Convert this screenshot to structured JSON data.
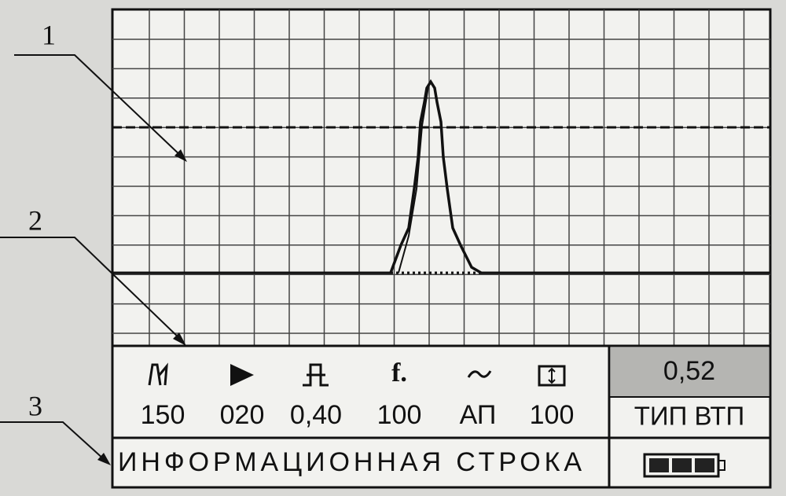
{
  "callouts": [
    "1",
    "2",
    "3"
  ],
  "parameters": [
    "150",
    "020",
    "0,40",
    "100",
    "АП",
    "100"
  ],
  "frequency_symbol": "f.",
  "measurement": "0,52",
  "probe_type": "ТИП ВТП",
  "info_line": "ИНФОРМАЦИОННАЯ СТРОКА"
}
